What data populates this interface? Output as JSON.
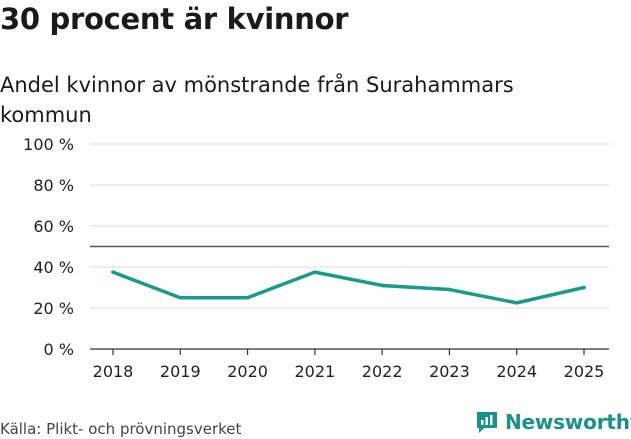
{
  "page": {
    "title": "30 procent är kvinnor",
    "subtitle": "Andel kvinnor av mönstrande från Surahammars kommun",
    "source": "Källa: Plikt- och prövningsverket",
    "brand": "Newsworthy"
  },
  "colors": {
    "line": "#1a9a8e",
    "reference": "#555555",
    "grid": "#dddddd",
    "brand": "#19938a"
  },
  "chart_data": {
    "type": "line",
    "title": "30 procent är kvinnor",
    "subtitle": "Andel kvinnor av mönstrande från Surahammars kommun",
    "xlabel": "",
    "ylabel": "",
    "x": [
      "2018",
      "2019",
      "2020",
      "2021",
      "2022",
      "2023",
      "2024",
      "2025"
    ],
    "series": [
      {
        "name": "Andel kvinnor",
        "values": [
          37.5,
          25,
          25,
          37.5,
          31,
          29,
          22.5,
          30
        ]
      }
    ],
    "reference_line": 50,
    "ylim": [
      0,
      100
    ],
    "yticks": [
      0,
      20,
      40,
      60,
      80,
      100
    ],
    "ytick_labels": [
      "0 %",
      "20 %",
      "40 %",
      "60 %",
      "80 %",
      "100 %"
    ],
    "grid": true,
    "legend": "none"
  }
}
